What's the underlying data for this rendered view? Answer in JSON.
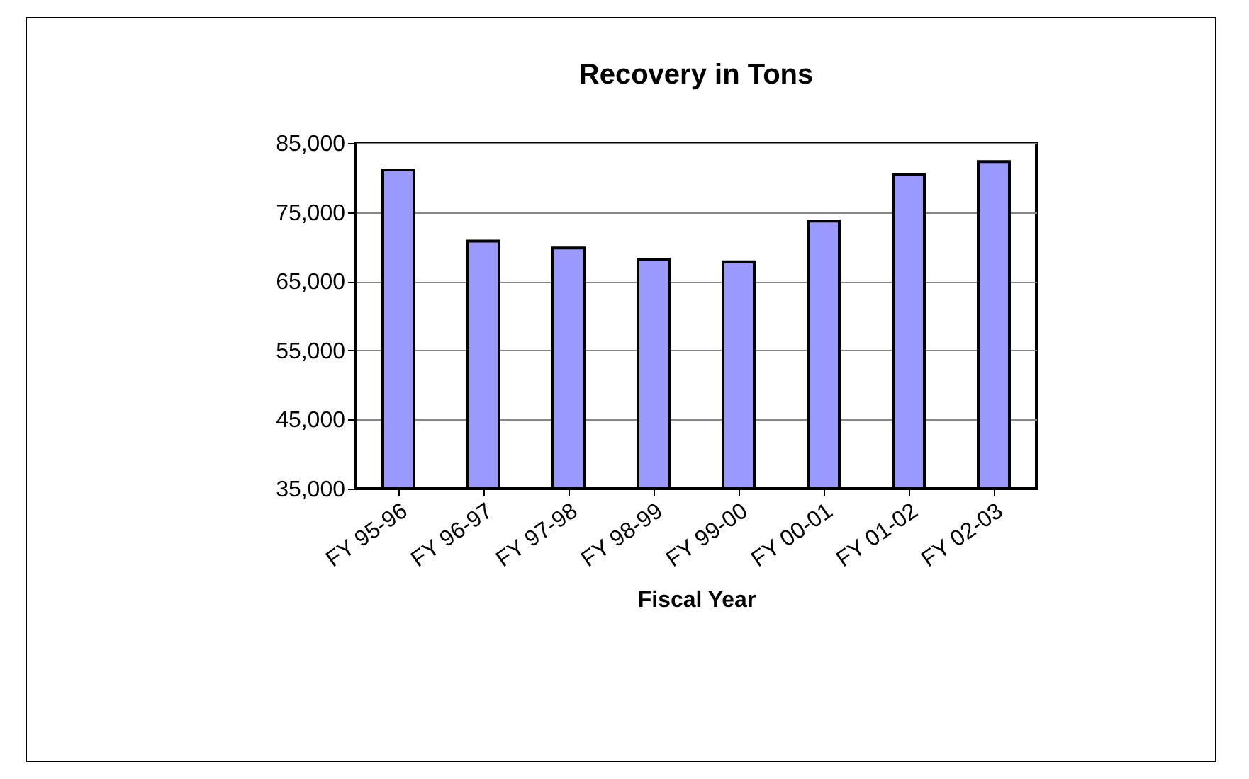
{
  "chart_data": {
    "type": "bar",
    "title": "Recovery in Tons",
    "xlabel": "Fiscal Year",
    "categories": [
      "FY 95-96",
      "FY 96-97",
      "FY 97-98",
      "FY 98-99",
      "FY 99-00",
      "FY 00-01",
      "FY 01-02",
      "FY 02-03"
    ],
    "values": [
      81100,
      70800,
      69800,
      68200,
      67800,
      73700,
      80500,
      82300
    ],
    "color": "#9999ff",
    "ylim": [
      35000,
      85000
    ],
    "yticks": [
      {
        "value": 35000,
        "label": "35,000"
      },
      {
        "value": 45000,
        "label": "45,000"
      },
      {
        "value": 55000,
        "label": "55,000"
      },
      {
        "value": 65000,
        "label": "65,000"
      },
      {
        "value": 75000,
        "label": "75,000"
      },
      {
        "value": 85000,
        "label": "85,000"
      }
    ],
    "grid": "y"
  }
}
